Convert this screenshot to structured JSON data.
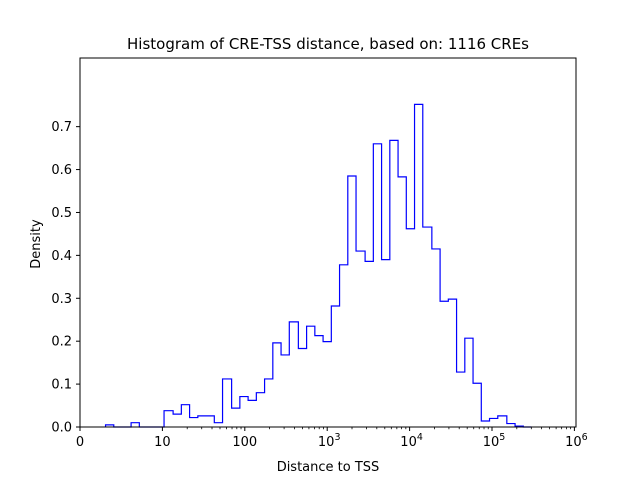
{
  "chart_data": {
    "type": "histogram",
    "title": "Histogram of CRE-TSS distance, based on: 1116 CREs",
    "xlabel": "Distance to TSS",
    "ylabel": "Density",
    "x_scale": "log10-like (0 at origin, then 10^1 … 10^6)",
    "xlim": [
      0,
      1000000
    ],
    "ylim": [
      0,
      0.86
    ],
    "x_ticks": [
      {
        "value": 0,
        "base": "0",
        "exp": ""
      },
      {
        "value": 10,
        "base": "10",
        "exp": ""
      },
      {
        "value": 100,
        "base": "100",
        "exp": ""
      },
      {
        "value": 1000,
        "base": "10",
        "exp": "3"
      },
      {
        "value": 10000,
        "base": "10",
        "exp": "4"
      },
      {
        "value": 100000,
        "base": "10",
        "exp": "5"
      },
      {
        "value": 1000000,
        "base": "10",
        "exp": "6"
      }
    ],
    "y_ticks": [
      "0.0",
      "0.1",
      "0.2",
      "0.3",
      "0.4",
      "0.5",
      "0.6",
      "0.7"
    ],
    "y_tick_values": [
      0.0,
      0.1,
      0.2,
      0.3,
      0.4,
      0.5,
      0.6,
      0.7
    ],
    "line_color": "#0000ff",
    "grid": false,
    "bin_edges_log10": [
      0.31,
      0.41,
      0.52,
      0.62,
      0.72,
      0.82,
      0.92,
      1.02,
      1.13,
      1.23,
      1.33,
      1.43,
      1.53,
      1.63,
      1.73,
      1.84,
      1.94,
      2.04,
      2.14,
      2.24,
      2.34,
      2.44,
      2.54,
      2.65,
      2.75,
      2.85,
      2.95,
      3.05,
      3.15,
      3.25,
      3.35,
      3.46,
      3.56,
      3.66,
      3.76,
      3.86,
      3.96,
      4.06,
      4.16,
      4.27,
      4.37,
      4.47,
      4.57,
      4.67,
      4.77,
      4.87,
      4.97,
      5.07,
      5.18,
      5.28,
      5.38,
      5.48
    ],
    "densities": [
      0.005,
      0.0,
      0.0,
      0.01,
      0.0,
      0.0,
      0.0,
      0.038,
      0.03,
      0.052,
      0.022,
      0.026,
      0.026,
      0.01,
      0.112,
      0.044,
      0.071,
      0.062,
      0.08,
      0.112,
      0.196,
      0.168,
      0.245,
      0.183,
      0.235,
      0.213,
      0.199,
      0.282,
      0.378,
      0.585,
      0.41,
      0.386,
      0.66,
      0.39,
      0.668,
      0.583,
      0.462,
      0.752,
      0.466,
      0.415,
      0.293,
      0.298,
      0.128,
      0.207,
      0.102,
      0.014,
      0.02,
      0.026,
      0.008,
      0.002,
      0.0
    ]
  }
}
